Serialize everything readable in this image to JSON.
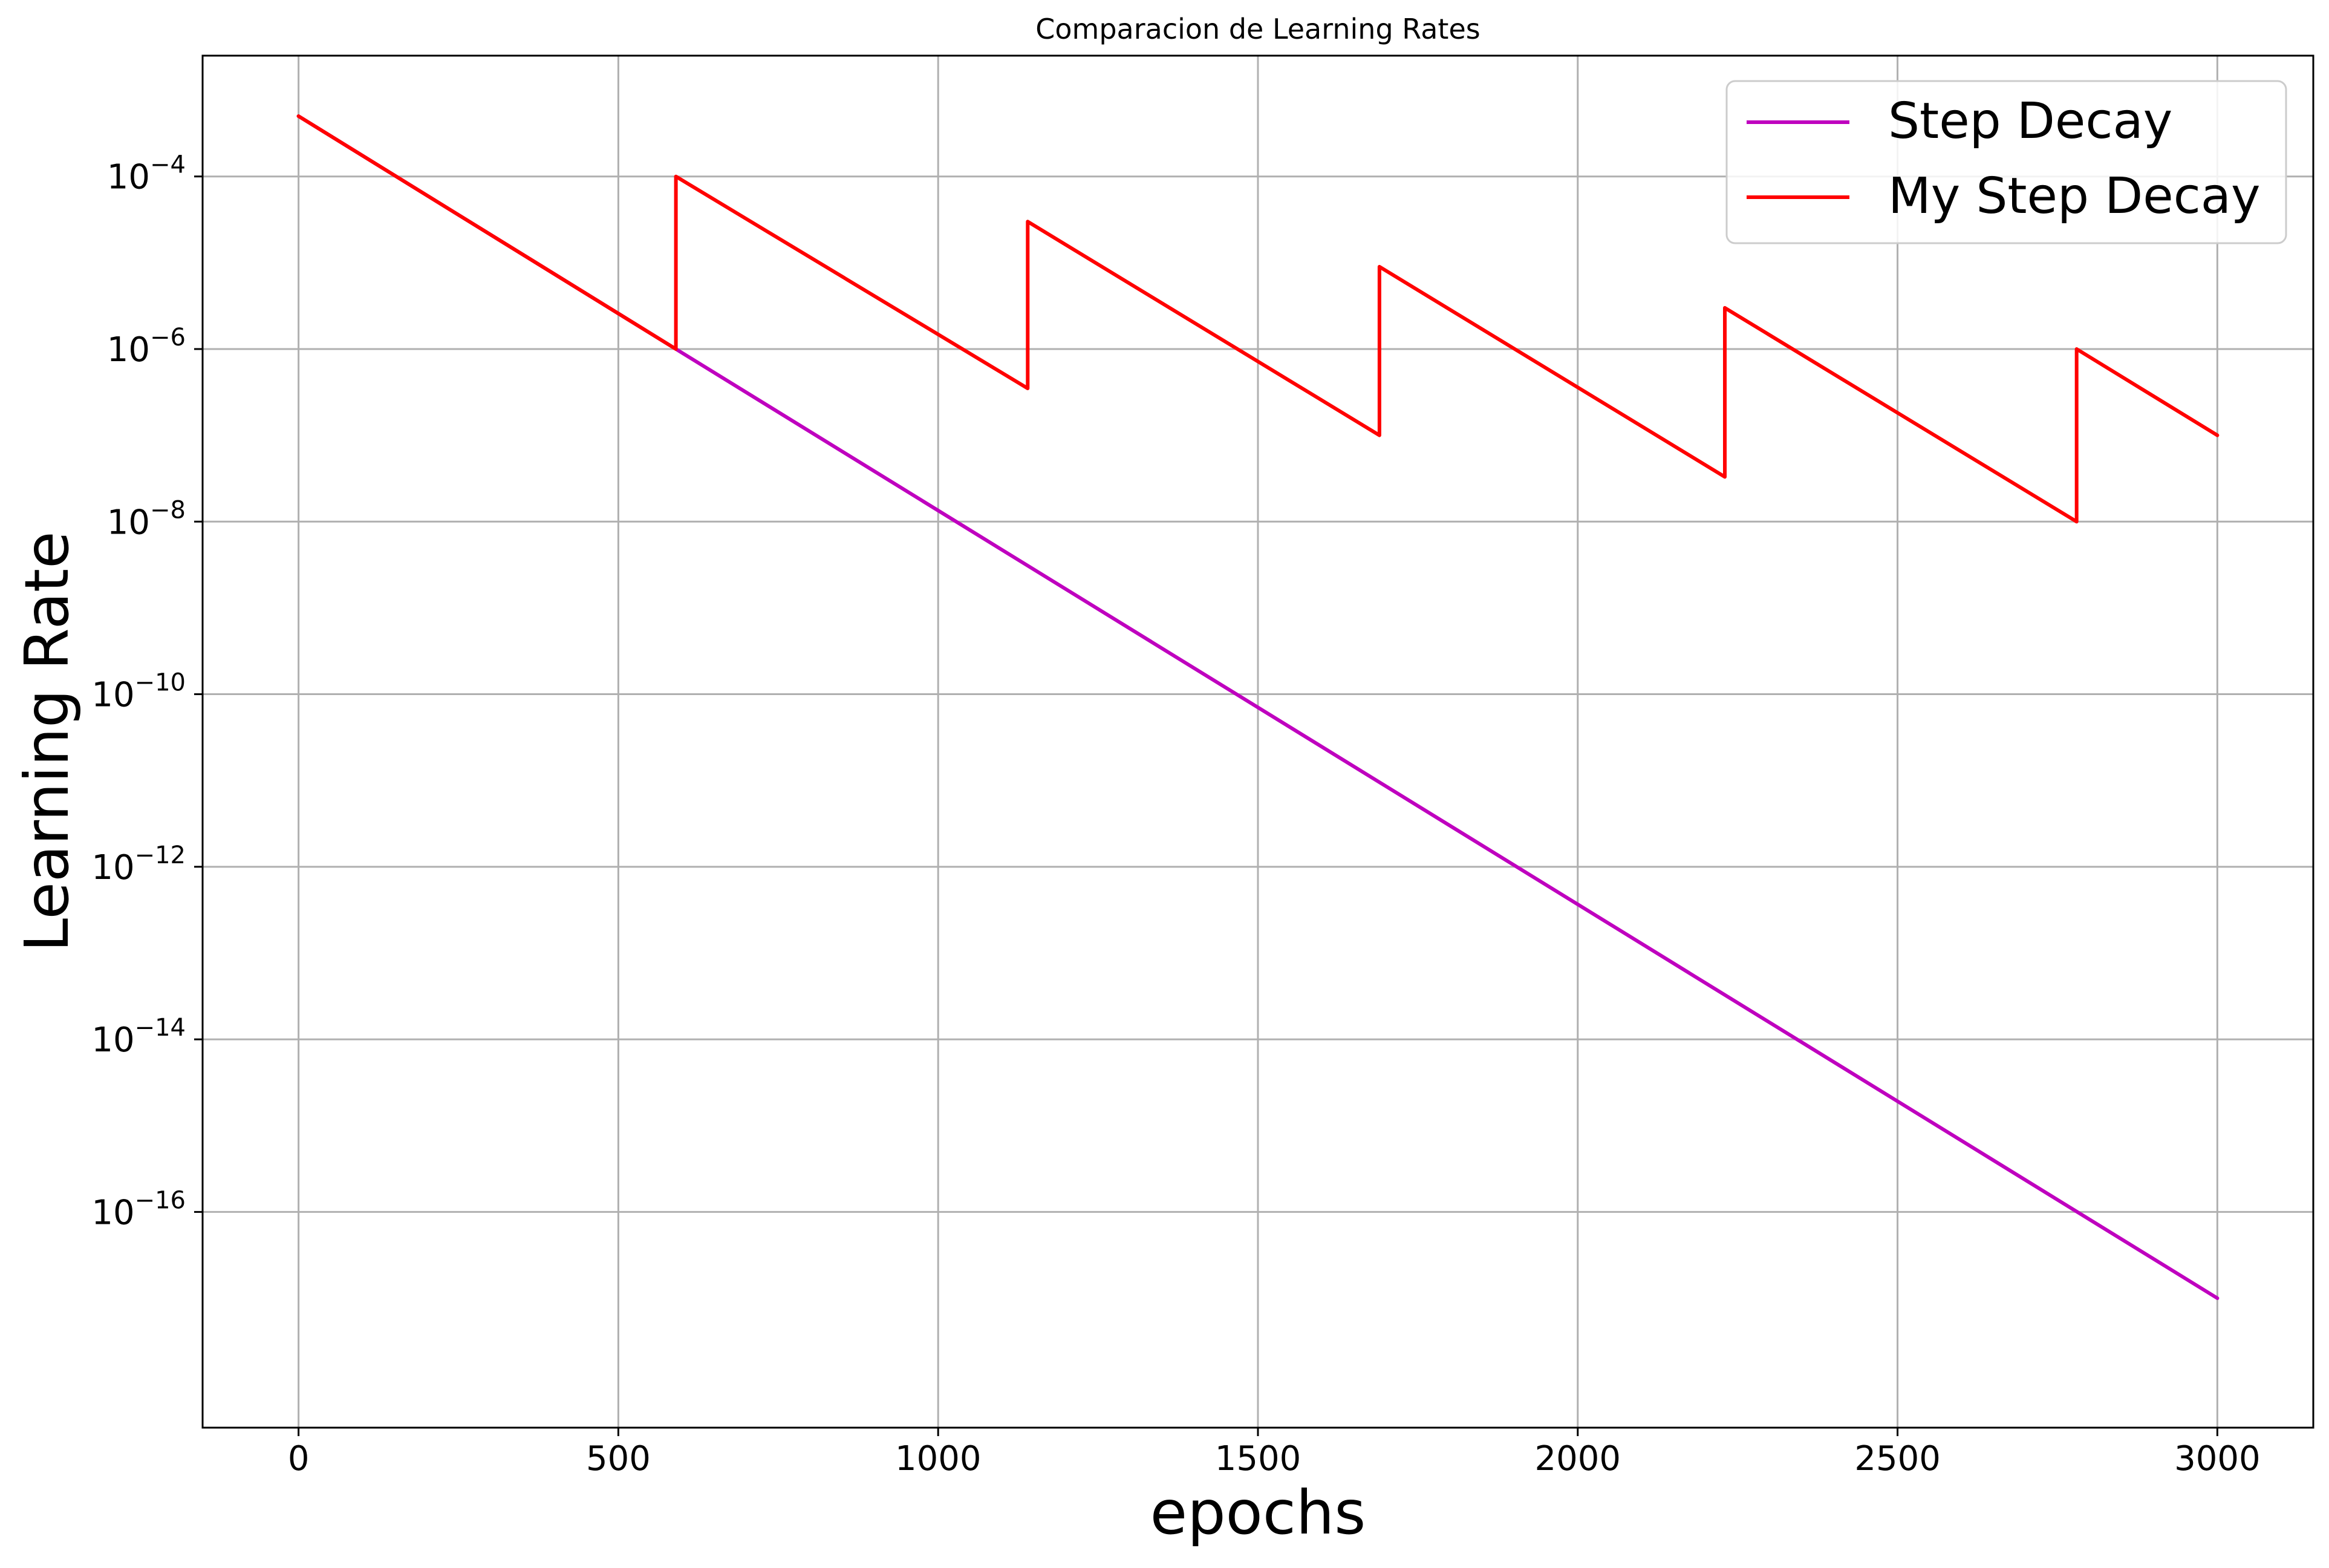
{
  "chart_data": {
    "type": "line",
    "title": "Comparacion de Learning Rates",
    "xlabel": "epochs",
    "ylabel": "Learning Rate",
    "xlim": [
      -150,
      3150
    ],
    "ylim_log10": [
      -18.5,
      -2.6
    ],
    "yscale": "log",
    "grid": true,
    "legend_position": "top-right",
    "x_ticks": [
      {
        "value": 0,
        "label": "0"
      },
      {
        "value": 500,
        "label": "500"
      },
      {
        "value": 1000,
        "label": "1000"
      },
      {
        "value": 1500,
        "label": "1500"
      },
      {
        "value": 2000,
        "label": "2000"
      },
      {
        "value": 2500,
        "label": "2500"
      },
      {
        "value": 3000,
        "label": "3000"
      }
    ],
    "y_ticks": [
      {
        "exp": -4,
        "base": "10",
        "sup": "−4"
      },
      {
        "exp": -6,
        "base": "10",
        "sup": "−6"
      },
      {
        "exp": -8,
        "base": "10",
        "sup": "−8"
      },
      {
        "exp": -10,
        "base": "10",
        "sup": "−10"
      },
      {
        "exp": -12,
        "base": "10",
        "sup": "−12"
      },
      {
        "exp": -14,
        "base": "10",
        "sup": "−14"
      },
      {
        "exp": -16,
        "base": "10",
        "sup": "−16"
      }
    ],
    "series": [
      {
        "name": "Step Decay",
        "color": "#bf00bf",
        "points": [
          [
            0,
            0.0005
          ],
          [
            590,
            1e-06
          ],
          [
            3000,
            1e-17
          ]
        ]
      },
      {
        "name": "My Step Decay",
        "color": "#ff0000",
        "points": [
          [
            0,
            0.0005
          ],
          [
            590,
            1e-06
          ],
          [
            590,
            0.0001
          ],
          [
            1140,
            3.5e-07
          ],
          [
            1140,
            3e-05
          ],
          [
            1690,
            1e-07
          ],
          [
            1690,
            9e-06
          ],
          [
            2230,
            3.3e-08
          ],
          [
            2230,
            3e-06
          ],
          [
            2780,
            1e-08
          ],
          [
            2780,
            1e-06
          ],
          [
            3000,
            1e-07
          ]
        ]
      }
    ]
  }
}
